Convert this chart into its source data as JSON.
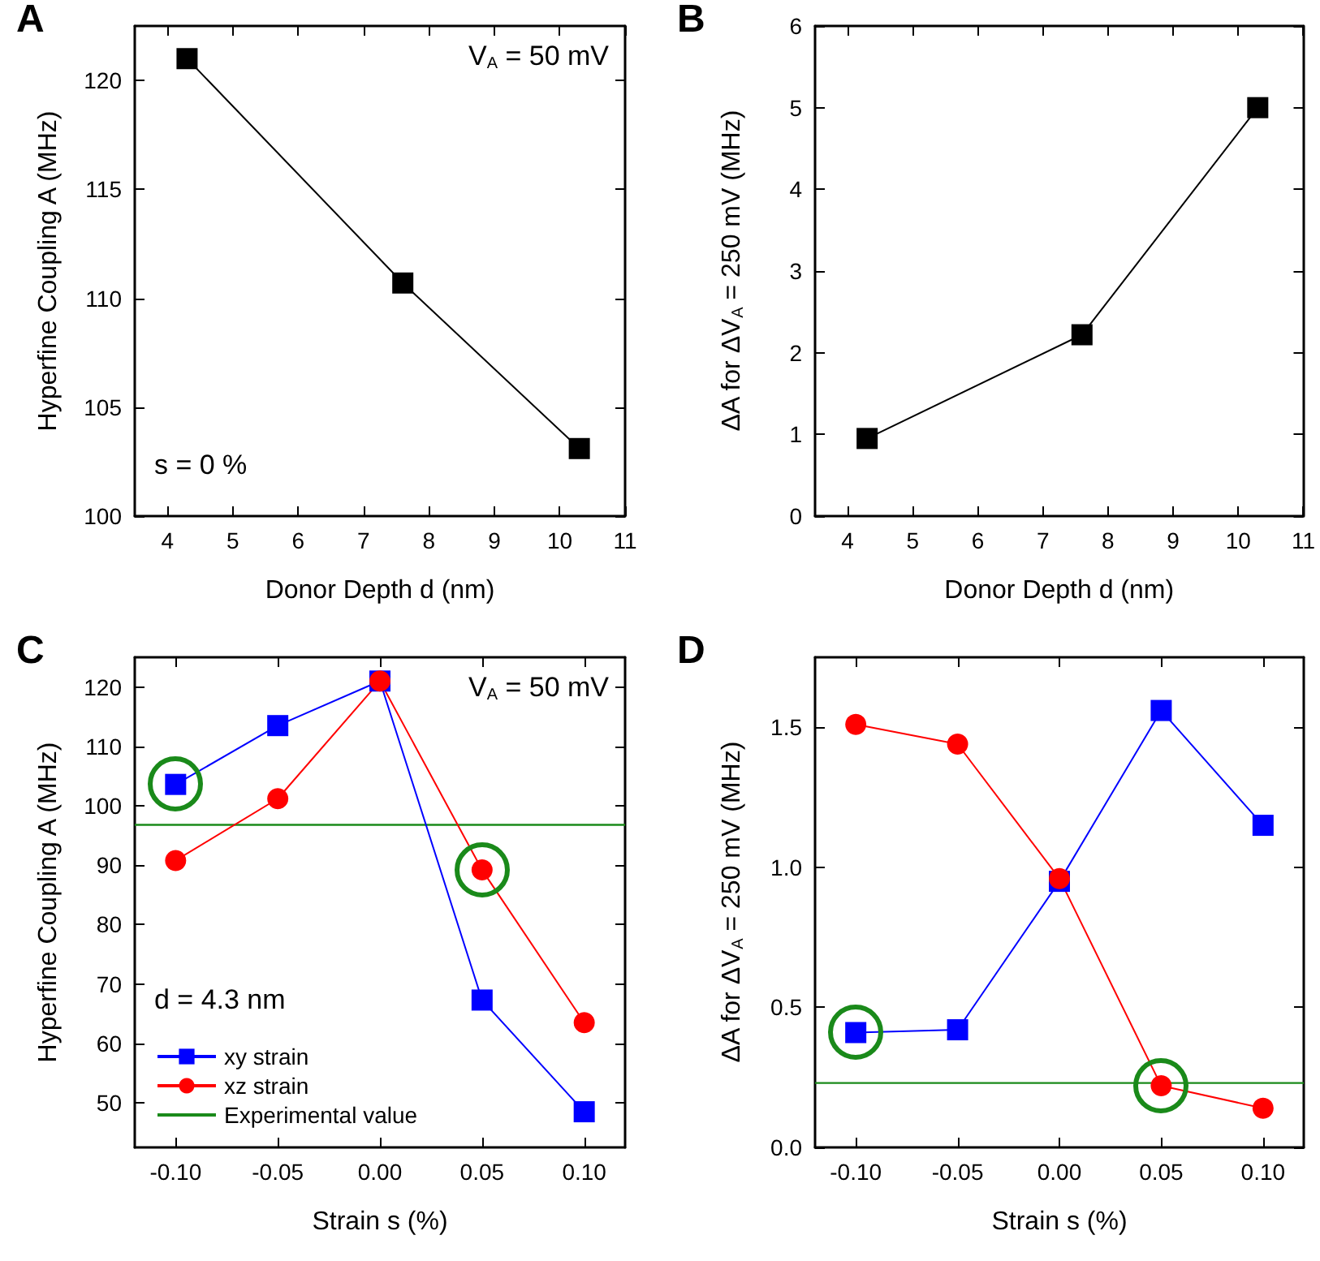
{
  "chart_data": [
    {
      "type": "line",
      "title": "A",
      "xlabel": "Donor Depth d (nm)",
      "ylabel": "Hyperfine Coupling A (MHz)",
      "annotations": [
        "V$_{A}$ = 50 mV",
        "s = 0 %"
      ],
      "x": [
        4.3,
        7.6,
        10.3
      ],
      "series": [
        {
          "color": "#000000",
          "values": [
            121,
            110.7,
            103.1
          ]
        }
      ],
      "xlim": [
        3.5,
        11
      ],
      "xticks": [
        4,
        5,
        6,
        7,
        8,
        9,
        10,
        11
      ],
      "ylim": [
        100,
        122.5
      ],
      "yticks": [
        100,
        105,
        110,
        115,
        120
      ],
      "marker": "square",
      "grid": false,
      "legend": false
    },
    {
      "type": "line",
      "title": "B",
      "xlabel": "Donor Depth d (nm)",
      "ylabel": "ΔA for ΔV$_{A}$ = 250 mV (MHz)",
      "x": [
        4.3,
        7.6,
        10.3
      ],
      "series": [
        {
          "color": "#000000",
          "values": [
            0.95,
            2.22,
            5.0
          ]
        }
      ],
      "xlim": [
        3.5,
        11
      ],
      "xticks": [
        4,
        5,
        6,
        7,
        8,
        9,
        10,
        11
      ],
      "ylim": [
        0,
        6
      ],
      "yticks": [
        0,
        1,
        2,
        3,
        4,
        5,
        6
      ],
      "marker": "square",
      "grid": false,
      "legend": false
    },
    {
      "type": "line",
      "title": "C",
      "xlabel": "Strain s (%)",
      "ylabel": "Hyperfine Coupling A (MHz)",
      "annotations": [
        "V$_{A}$ = 50 mV",
        "d = 4.3 nm"
      ],
      "x": [
        -0.1,
        -0.05,
        0,
        0.05,
        0.1
      ],
      "series": [
        {
          "name": "xy strain",
          "color": "#0000ff",
          "marker": "square",
          "values": [
            103.6,
            113.5,
            121,
            67.3,
            48.5
          ]
        },
        {
          "name": "xz strain",
          "color": "#ff0000",
          "marker": "circle",
          "values": [
            90.8,
            101.2,
            121,
            89.2,
            63.5
          ]
        }
      ],
      "ref_lines": [
        {
          "axis": "y",
          "value": 96.8,
          "label": "Experimental value",
          "color": "#1a8a1a"
        }
      ],
      "xlim": [
        -0.12,
        0.12
      ],
      "xticks": [
        {
          "value": -0.1,
          "label": "-0.10"
        },
        {
          "value": -0.05,
          "label": "-0.05"
        },
        {
          "value": 0,
          "label": "0.00"
        },
        {
          "value": 0.05,
          "label": "0.05"
        },
        {
          "value": 0.1,
          "label": "0.10"
        }
      ],
      "ylim": [
        42.5,
        125
      ],
      "yticks": [
        50,
        60,
        70,
        80,
        90,
        100,
        110,
        120
      ],
      "grid": false,
      "legend": "bottom left"
    },
    {
      "type": "line",
      "title": "D",
      "xlabel": "Strain s (%)",
      "ylabel": "ΔA for ΔV$_{A}$ = 250 mV (MHz)",
      "x": [
        -0.1,
        -0.05,
        0,
        0.05,
        0.1
      ],
      "series": [
        {
          "color": "#0000ff",
          "marker": "square",
          "values": [
            0.41,
            0.42,
            0.95,
            1.56,
            1.15
          ]
        },
        {
          "color": "#ff0000",
          "marker": "circle",
          "values": [
            1.51,
            1.44,
            0.96,
            0.22,
            0.14
          ]
        }
      ],
      "ref_lines": [
        {
          "axis": "y",
          "value": 0.23,
          "color": "#1a8a1a"
        }
      ],
      "xlim": [
        -0.12,
        0.12
      ],
      "xticks": [
        {
          "value": -0.1,
          "label": "-0.10"
        },
        {
          "value": -0.05,
          "label": "-0.05"
        },
        {
          "value": 0,
          "label": "0.00"
        },
        {
          "value": 0.05,
          "label": "0.05"
        },
        {
          "value": 0.1,
          "label": "0.10"
        }
      ],
      "ylim": [
        0,
        1.75
      ],
      "yticks": [
        {
          "value": 0,
          "label": "0.0"
        },
        {
          "value": 0.5,
          "label": "0.5"
        },
        {
          "value": 1,
          "label": "1.0"
        },
        {
          "value": 1.5,
          "label": "1.5"
        }
      ],
      "grid": false,
      "legend": false
    }
  ]
}
